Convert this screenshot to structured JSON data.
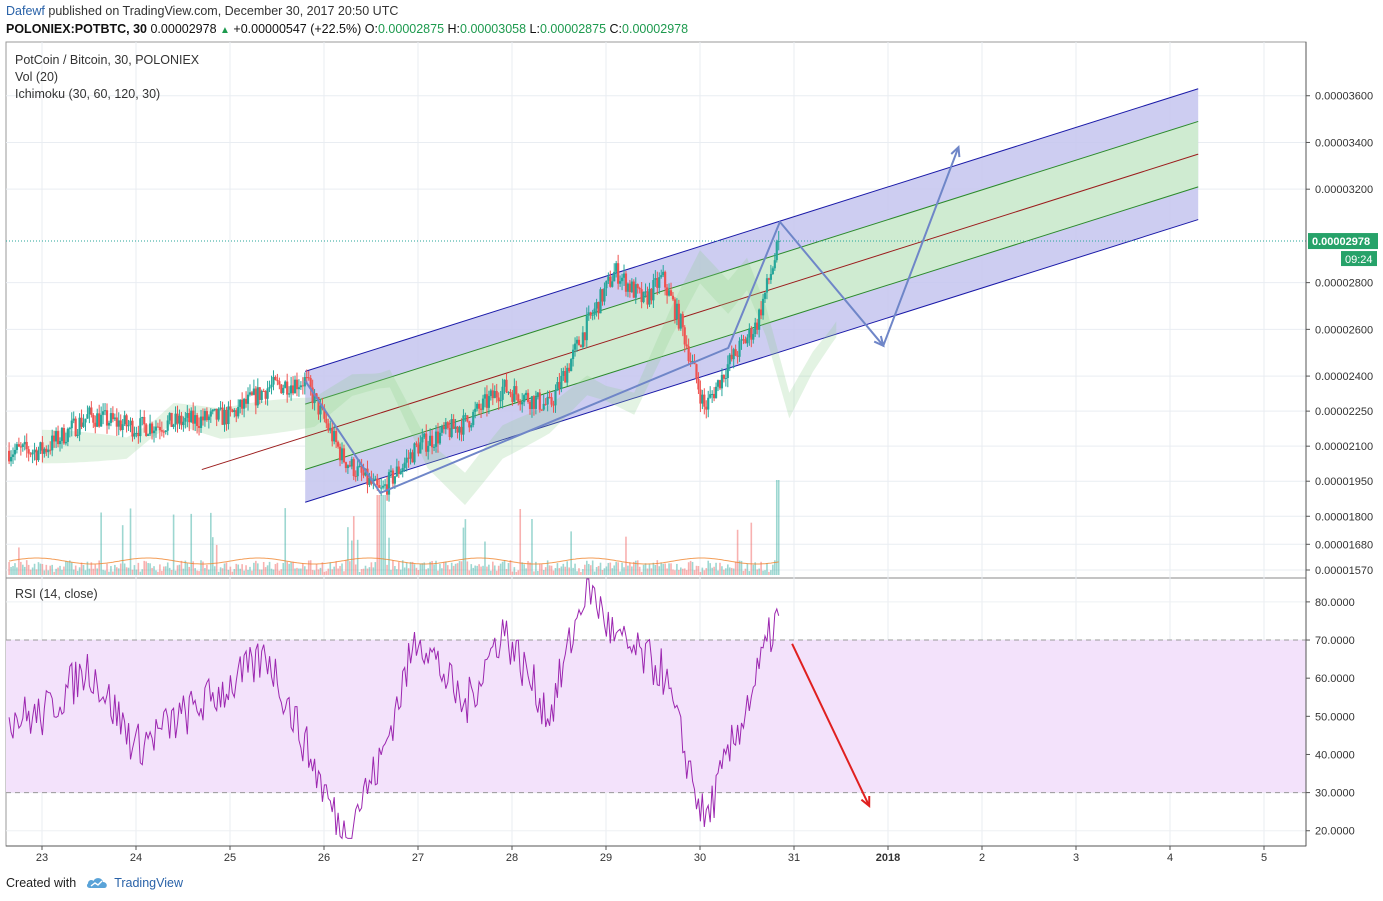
{
  "header": {
    "author": "Dafewf",
    "published_text": "published on TradingView.com, December 30, 2017 20:50 UTC",
    "symbol": "POLONIEX:POTBTC, 30",
    "last": "0.00002978",
    "change_arrow": "▲",
    "change": "+0.00000547 (+22.5%)",
    "o_label": "O:",
    "o_value": "0.00002875",
    "h_label": "H:",
    "h_value": "0.00003058",
    "l_label": "L:",
    "l_value": "0.00002875",
    "c_label": "C:",
    "c_value": "0.00002978"
  },
  "legend": {
    "title": "PotCoin / Bitcoin, 30, POLONIEX",
    "vol": "Vol (20)",
    "ichimoku": "Ichimoku (30, 60, 120, 30)",
    "rsi": "RSI (14, close)"
  },
  "price_axis": {
    "ticks": [
      "0.00003600",
      "0.00003400",
      "0.00003200",
      "0.00002800",
      "0.00002600",
      "0.00002400",
      "0.00002250",
      "0.00002100",
      "0.00001950",
      "0.00001800",
      "0.00001680",
      "0.00001570"
    ],
    "current_price": "0.00002978",
    "countdown": "09:24"
  },
  "rsi_axis": {
    "ticks": [
      "80.0000",
      "70.0000",
      "60.0000",
      "50.0000",
      "40.0000",
      "30.0000",
      "20.0000"
    ]
  },
  "time_axis": {
    "ticks": [
      "23",
      "24",
      "25",
      "26",
      "27",
      "28",
      "29",
      "30",
      "31",
      "2018",
      "2",
      "3",
      "4",
      "5"
    ]
  },
  "footer": {
    "created_with": "Created with",
    "brand": "TradingView"
  },
  "colors": {
    "up": "#26a69a",
    "down": "#ef5350",
    "channel_outer_fill": "#c4c4ef",
    "channel_inner_fill": "#cfeccf",
    "channel_outer_line": "#1a1aa8",
    "channel_inner_line": "#2b8a2b",
    "channel_median": "#9b1c1c",
    "arrow_blue": "#6f86c8",
    "arrow_red": "#e02020",
    "rsi_line": "#9c27b0",
    "rsi_band": "#f3e2fb",
    "price_label_bg": "#26a269"
  },
  "chart_data": {
    "type": "candlestick",
    "pair": "PotCoin / Bitcoin",
    "interval": "30",
    "exchange": "POLONIEX",
    "price_range": [
      1.54e-05,
      3.83e-05
    ],
    "key_points": [
      {
        "time": "Dec 23",
        "price": 2.08e-05
      },
      {
        "time": "Dec 23.5",
        "price": 2.23e-05
      },
      {
        "time": "Dec 24",
        "price": 2.18e-05
      },
      {
        "time": "Dec 25",
        "price": 2.23e-05
      },
      {
        "time": "Dec 25.4",
        "price": 2.35e-05
      },
      {
        "time": "Dec 25.8",
        "price": 2.38e-05
      },
      {
        "time": "Dec 26.2",
        "price": 2.05e-05
      },
      {
        "time": "Dec 26.6",
        "price": 1.9e-05
      },
      {
        "time": "Dec 27",
        "price": 2.1e-05
      },
      {
        "time": "Dec 27.5",
        "price": 2.2e-05
      },
      {
        "time": "Dec 27.9",
        "price": 2.35e-05
      },
      {
        "time": "Dec 28.4",
        "price": 2.27e-05
      },
      {
        "time": "Dec 28.8",
        "price": 2.62e-05
      },
      {
        "time": "Dec 29.1",
        "price": 2.85e-05
      },
      {
        "time": "Dec 29.4",
        "price": 2.72e-05
      },
      {
        "time": "Dec 29.6",
        "price": 2.82e-05
      },
      {
        "time": "Dec 29.8",
        "price": 2.62e-05
      },
      {
        "time": "Dec 30.05",
        "price": 2.26e-05
      },
      {
        "time": "Dec 30.3",
        "price": 2.45e-05
      },
      {
        "time": "Dec 30.6",
        "price": 2.62e-05
      },
      {
        "time": "Dec 30.85",
        "price": 2.98e-05
      }
    ],
    "last_price": 2.978e-05,
    "rsi": {
      "period": 14,
      "upper_band": 70,
      "lower_band": 30,
      "range": [
        16,
        86
      ],
      "key_points": [
        {
          "time": "Dec 23",
          "value": 50
        },
        {
          "time": "Dec 23.5",
          "value": 63
        },
        {
          "time": "Dec 24",
          "value": 42
        },
        {
          "time": "Dec 25",
          "value": 58
        },
        {
          "time": "Dec 25.4",
          "value": 66
        },
        {
          "time": "Dec 26.2",
          "value": 19
        },
        {
          "time": "Dec 26.6",
          "value": 38
        },
        {
          "time": "Dec 27",
          "value": 72
        },
        {
          "time": "Dec 27.5",
          "value": 52
        },
        {
          "time": "Dec 27.9",
          "value": 73
        },
        {
          "time": "Dec 28.4",
          "value": 50
        },
        {
          "time": "Dec 28.8",
          "value": 85
        },
        {
          "time": "Dec 29.1",
          "value": 70
        },
        {
          "time": "Dec 29.6",
          "value": 62
        },
        {
          "time": "Dec 30.05",
          "value": 22
        },
        {
          "time": "Dec 30.6",
          "value": 60
        },
        {
          "time": "Dec 30.8",
          "value": 75
        }
      ]
    }
  }
}
